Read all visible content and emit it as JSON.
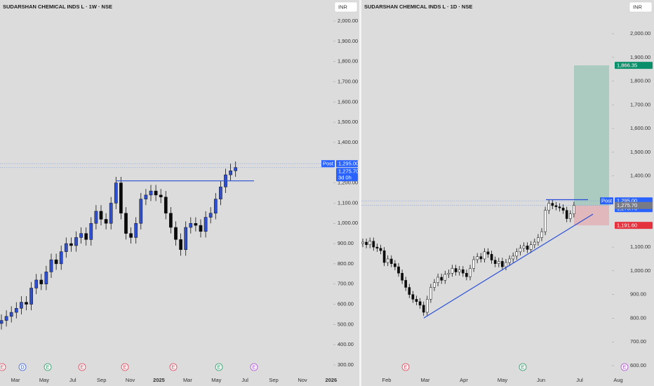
{
  "chart_data": [
    {
      "type": "candlestick",
      "title": "SUDARSHAN CHEMICAL INDS L · 1W · NSE",
      "currency": "INR",
      "xlabels": [
        "Mar",
        "May",
        "Jul",
        "Sep",
        "Nov",
        "2025",
        "Mar",
        "May",
        "Jul",
        "Sep",
        "Nov",
        "2026"
      ],
      "ylim": [
        300,
        2000
      ],
      "yticks": [
        {
          "value": 2000,
          "label": "2,000.00"
        },
        {
          "value": 1900,
          "label": "1,900.00"
        },
        {
          "value": 1800,
          "label": "1,800.00"
        },
        {
          "value": 1700,
          "label": "1,700.00"
        },
        {
          "value": 1600,
          "label": "1,600.00"
        },
        {
          "value": 1500,
          "label": "1,500.00"
        },
        {
          "value": 1400,
          "label": "1,400.00"
        },
        {
          "value": 1200,
          "label": "1,200.00"
        },
        {
          "value": 1100,
          "label": "1,100.00"
        },
        {
          "value": 1000,
          "label": "1,000.00"
        },
        {
          "value": 900,
          "label": "900.00"
        },
        {
          "value": 800,
          "label": "800.00"
        },
        {
          "value": 700,
          "label": "700.00"
        },
        {
          "value": 600,
          "label": "600.00"
        },
        {
          "value": 500,
          "label": "500.00"
        },
        {
          "value": 400,
          "label": "400.00"
        },
        {
          "value": 300,
          "label": "300.00"
        }
      ],
      "up_color": "#2f4fd1",
      "down_color": "#0b0b0b",
      "open": [
        505,
        520,
        540,
        560,
        580,
        610,
        600,
        680,
        720,
        700,
        760,
        820,
        800,
        860,
        900,
        890,
        930,
        950,
        920,
        1000,
        1060,
        1020,
        1000,
        1100,
        1200,
        1050,
        950,
        930,
        1000,
        1120,
        1140,
        1160,
        1140,
        1130,
        1050,
        980,
        920,
        870,
        980,
        1000,
        990,
        960,
        1030,
        1050,
        1120,
        1180,
        1240,
        1260
      ],
      "high": [
        550,
        570,
        590,
        610,
        640,
        640,
        710,
        750,
        750,
        790,
        850,
        850,
        890,
        930,
        930,
        960,
        980,
        980,
        1030,
        1090,
        1090,
        1050,
        1130,
        1230,
        1230,
        1080,
        980,
        1030,
        1150,
        1170,
        1190,
        1190,
        1170,
        1160,
        1080,
        1010,
        950,
        1010,
        1030,
        1030,
        1020,
        1060,
        1080,
        1150,
        1210,
        1270,
        1295,
        1306
      ],
      "low": [
        475,
        490,
        510,
        530,
        550,
        570,
        570,
        650,
        670,
        670,
        730,
        770,
        770,
        830,
        860,
        860,
        900,
        890,
        890,
        970,
        990,
        970,
        970,
        1070,
        1020,
        920,
        900,
        900,
        970,
        1090,
        1110,
        1110,
        1100,
        1020,
        950,
        890,
        840,
        840,
        950,
        960,
        930,
        930,
        1000,
        1020,
        1090,
        1150,
        1210,
        1230
      ],
      "close": [
        520,
        540,
        560,
        580,
        610,
        600,
        680,
        720,
        700,
        760,
        820,
        800,
        860,
        900,
        890,
        930,
        950,
        920,
        1000,
        1060,
        1020,
        1000,
        1100,
        1200,
        1050,
        950,
        930,
        1000,
        1120,
        1140,
        1160,
        1140,
        1130,
        1050,
        980,
        920,
        870,
        980,
        1000,
        990,
        960,
        1030,
        1050,
        1120,
        1180,
        1240,
        1260,
        1276
      ],
      "resistance": 1210,
      "post_label": "Post",
      "price_high": {
        "value": 1295,
        "label": "1,295.00"
      },
      "price_last": {
        "value": 1275.7,
        "label": "1,275.70"
      },
      "countdown": "3d 0h",
      "line_color": "#2a4fd6",
      "events": [
        {
          "label": "E",
          "color": "#e0455a"
        },
        {
          "label": "D",
          "color": "#3a62d8"
        },
        {
          "label": "E",
          "color": "#2a9d6a"
        },
        {
          "label": "E",
          "color": "#e0455a"
        },
        {
          "label": "E",
          "color": "#e0455a"
        },
        {
          "label": "E",
          "color": "#e0455a"
        },
        {
          "label": "E",
          "color": "#2a9d6a"
        },
        {
          "label": "E",
          "color": "#b04fd8"
        }
      ]
    },
    {
      "type": "candlestick",
      "title": "SUDARSHAN CHEMICAL INDS L · 1D · NSE",
      "currency": "INR",
      "xlabels": [
        "Feb",
        "Mar",
        "Apr",
        "May",
        "Jun",
        "Jul",
        "Aug"
      ],
      "ylim": [
        600,
        2000
      ],
      "yticks": [
        {
          "value": 2000,
          "label": "2,000.00"
        },
        {
          "value": 1900,
          "label": "1,900.00"
        },
        {
          "value": 1800,
          "label": "1,800.00"
        },
        {
          "value": 1700,
          "label": "1,700.00"
        },
        {
          "value": 1600,
          "label": "1,600.00"
        },
        {
          "value": 1500,
          "label": "1,500.00"
        },
        {
          "value": 1400,
          "label": "1,400.00"
        },
        {
          "value": 1100,
          "label": "1,100.00"
        },
        {
          "value": 1000,
          "label": "1,000.00"
        },
        {
          "value": 900,
          "label": "900.00"
        },
        {
          "value": 800,
          "label": "800.00"
        },
        {
          "value": 700,
          "label": "700.00"
        },
        {
          "value": 600,
          "label": "600.00"
        }
      ],
      "up_color": "#ffffff",
      "down_color": "#0b0b0b",
      "open": [
        1115,
        1121,
        1110,
        1125,
        1100,
        1095,
        1085,
        1035,
        1050,
        1030,
        1017,
        990,
        960,
        930,
        900,
        880,
        870,
        855,
        825,
        880,
        930,
        950,
        973,
        960,
        985,
        990,
        1010,
        995,
        1005,
        990,
        975,
        1010,
        1047,
        1060,
        1050,
        1080,
        1070,
        1045,
        1030,
        1040,
        1017,
        1035,
        1050,
        1062,
        1080,
        1095,
        1105,
        1090,
        1110,
        1121,
        1140,
        1165,
        1255,
        1285,
        1275,
        1270,
        1265,
        1255,
        1220,
        1240
      ],
      "high": [
        1136,
        1136,
        1140,
        1140,
        1115,
        1110,
        1100,
        1065,
        1065,
        1045,
        1032,
        1005,
        975,
        945,
        915,
        895,
        885,
        870,
        895,
        945,
        965,
        988,
        988,
        1000,
        1005,
        1025,
        1025,
        1020,
        1020,
        1005,
        1025,
        1062,
        1075,
        1075,
        1095,
        1095,
        1085,
        1060,
        1055,
        1055,
        1050,
        1065,
        1077,
        1095,
        1110,
        1120,
        1120,
        1125,
        1136,
        1155,
        1180,
        1270,
        1300,
        1300,
        1290,
        1285,
        1280,
        1270,
        1255,
        1291
      ],
      "low": [
        1100,
        1095,
        1095,
        1085,
        1080,
        1070,
        1020,
        1020,
        1015,
        1002,
        975,
        945,
        915,
        885,
        865,
        855,
        840,
        810,
        810,
        865,
        915,
        935,
        945,
        945,
        970,
        975,
        980,
        980,
        975,
        960,
        960,
        995,
        1032,
        1035,
        1035,
        1055,
        1030,
        1015,
        1015,
        1002,
        1002,
        1020,
        1035,
        1047,
        1065,
        1080,
        1075,
        1075,
        1095,
        1106,
        1125,
        1150,
        1240,
        1260,
        1255,
        1250,
        1240,
        1205,
        1205,
        1225
      ],
      "close": [
        1121,
        1110,
        1125,
        1100,
        1095,
        1085,
        1035,
        1050,
        1030,
        1017,
        990,
        960,
        930,
        900,
        880,
        870,
        855,
        825,
        880,
        930,
        950,
        973,
        960,
        985,
        990,
        1010,
        995,
        1005,
        990,
        975,
        1010,
        1047,
        1060,
        1050,
        1080,
        1070,
        1045,
        1030,
        1040,
        1017,
        1035,
        1050,
        1062,
        1080,
        1095,
        1105,
        1090,
        1110,
        1121,
        1140,
        1165,
        1255,
        1285,
        1275,
        1270,
        1265,
        1255,
        1220,
        1240,
        1276
      ],
      "resistance": 1300,
      "trendline": [
        801,
        1239
      ],
      "post_label": "Post",
      "price_high": {
        "value": 1295,
        "label": "1,295.00"
      },
      "price_last": {
        "value": 1275.7,
        "label": "1,275.70"
      },
      "entry": {
        "value": 1275.7,
        "label": "1,275.70"
      },
      "target": {
        "value": 1866.35,
        "label": "1,866.35"
      },
      "stop": {
        "value": 1191.6,
        "label": "1,191.60"
      },
      "line_color": "#2a4fd6",
      "target_color": "#0b8f6a",
      "stop_color": "#e5323f",
      "events": [
        {
          "label": "E",
          "color": "#e0455a"
        },
        {
          "label": "E",
          "color": "#2a9d6a"
        },
        {
          "label": "E",
          "color": "#b04fd8"
        }
      ]
    }
  ]
}
